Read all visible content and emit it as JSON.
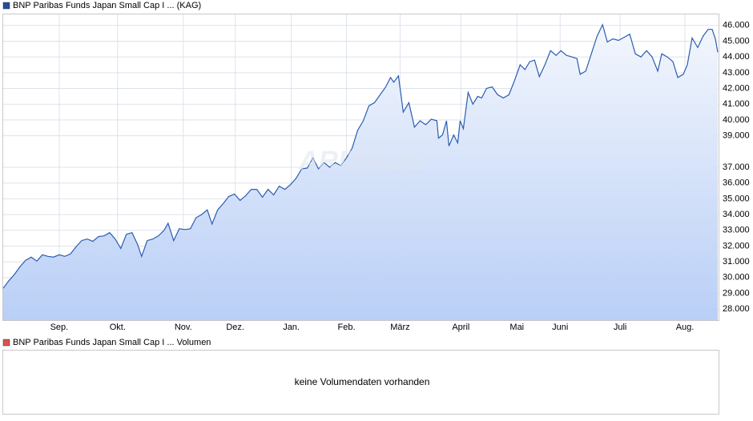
{
  "chart_data": {
    "type": "area",
    "legend": "BNP Paribas Funds Japan Small Cap I ... (KAG)",
    "watermark": "ARIVA.DE",
    "color": "#2a5db0",
    "legend_color": "#1f4e9c",
    "grid": true,
    "x": [
      0,
      7,
      14,
      21,
      28,
      35,
      42,
      49,
      56,
      63,
      70,
      77,
      84,
      91,
      98,
      105,
      112,
      119,
      126,
      133,
      140,
      147,
      154,
      161,
      168,
      173,
      180,
      187,
      194,
      201,
      206,
      213,
      220,
      227,
      234,
      241,
      248,
      255,
      261,
      268,
      275,
      282,
      289,
      296,
      303,
      310,
      317,
      324,
      331,
      338,
      345,
      352,
      359,
      366,
      373,
      380,
      387,
      394,
      401,
      408,
      415,
      422,
      429,
      436,
      443,
      450,
      457,
      464,
      471,
      478,
      484,
      488,
      494,
      500,
      507,
      514,
      521,
      528,
      535,
      542,
      544,
      549,
      554,
      557,
      563,
      568,
      571,
      575,
      581,
      587,
      593,
      598,
      604,
      611,
      618,
      625,
      632,
      639,
      646,
      652,
      658,
      664,
      670,
      677,
      684,
      691,
      697,
      704,
      711,
      717,
      721,
      728,
      735,
      742,
      749,
      755,
      762,
      769,
      776,
      783,
      790,
      797,
      804,
      811,
      818,
      823,
      830,
      837,
      843,
      850,
      855,
      861,
      868,
      875,
      881,
      886,
      890,
      893
    ],
    "values": [
      29.32,
      29.8,
      30.2,
      30.7,
      31.1,
      31.3,
      31.05,
      31.45,
      31.35,
      31.3,
      31.45,
      31.35,
      31.5,
      31.95,
      32.35,
      32.45,
      32.3,
      32.6,
      32.65,
      32.85,
      32.45,
      31.85,
      32.75,
      32.85,
      32.1,
      31.35,
      32.35,
      32.45,
      32.65,
      33.0,
      33.45,
      32.35,
      33.1,
      33.05,
      33.1,
      33.8,
      34.0,
      34.3,
      33.4,
      34.3,
      34.7,
      35.15,
      35.3,
      34.9,
      35.2,
      35.6,
      35.6,
      35.1,
      35.6,
      35.25,
      35.8,
      35.6,
      35.9,
      36.3,
      36.9,
      36.95,
      37.6,
      36.9,
      37.3,
      37.0,
      37.3,
      37.1,
      37.6,
      38.2,
      39.35,
      39.95,
      40.9,
      41.1,
      41.6,
      42.1,
      42.7,
      42.4,
      42.8,
      40.5,
      41.1,
      39.55,
      39.95,
      39.7,
      40.05,
      39.95,
      38.85,
      39.05,
      39.95,
      38.35,
      39.05,
      38.55,
      39.95,
      39.45,
      41.75,
      41.0,
      41.5,
      41.4,
      42.0,
      42.1,
      41.6,
      41.4,
      41.6,
      42.5,
      43.5,
      43.2,
      43.7,
      43.8,
      42.75,
      43.5,
      44.4,
      44.1,
      44.4,
      44.1,
      44.0,
      43.9,
      42.9,
      43.1,
      44.2,
      45.3,
      46.05,
      44.95,
      45.15,
      45.05,
      45.25,
      45.45,
      44.2,
      44.0,
      44.4,
      44.0,
      43.1,
      44.2,
      44.0,
      43.7,
      42.7,
      42.9,
      43.5,
      45.2,
      44.6,
      45.35,
      45.75,
      45.75,
      45.15,
      44.3
    ],
    "xlim": [
      0,
      894
    ],
    "xticks": [
      {
        "value": 70,
        "label": "Sep."
      },
      {
        "value": 143,
        "label": "Okt."
      },
      {
        "value": 225,
        "label": "Nov."
      },
      {
        "value": 290,
        "label": "Dez."
      },
      {
        "value": 360,
        "label": "Jan."
      },
      {
        "value": 429,
        "label": "Feb."
      },
      {
        "value": 496,
        "label": "März"
      },
      {
        "value": 572,
        "label": "April"
      },
      {
        "value": 642,
        "label": "Mai"
      },
      {
        "value": 696,
        "label": "Juni"
      },
      {
        "value": 771,
        "label": "Juli"
      },
      {
        "value": 852,
        "label": "Aug."
      }
    ],
    "ylim": [
      27.3,
      46.7
    ],
    "yticks": [
      {
        "value": 28,
        "label": "28.000"
      },
      {
        "value": 29,
        "label": "29.000"
      },
      {
        "value": 30,
        "label": "30.000"
      },
      {
        "value": 31,
        "label": "31.000"
      },
      {
        "value": 32,
        "label": "32.000"
      },
      {
        "value": 33,
        "label": "33.000"
      },
      {
        "value": 34,
        "label": "34.000"
      },
      {
        "value": 35,
        "label": "35.000"
      },
      {
        "value": 36,
        "label": "36.000"
      },
      {
        "value": 37,
        "label": "37.000"
      },
      {
        "value": 39,
        "label": "39.000"
      },
      {
        "value": 40,
        "label": "40.000"
      },
      {
        "value": 41,
        "label": "41.000"
      },
      {
        "value": 42,
        "label": "42.000"
      },
      {
        "value": 43,
        "label": "43.000"
      },
      {
        "value": 44,
        "label": "44.000"
      },
      {
        "value": 45,
        "label": "45.000"
      },
      {
        "value": 46,
        "label": "46.000"
      }
    ]
  },
  "volume_panel": {
    "legend": "BNP Paribas Funds Japan Small Cap I ... Volumen",
    "legend_color": "#d9534f",
    "message": "keine Volumendaten vorhanden"
  }
}
